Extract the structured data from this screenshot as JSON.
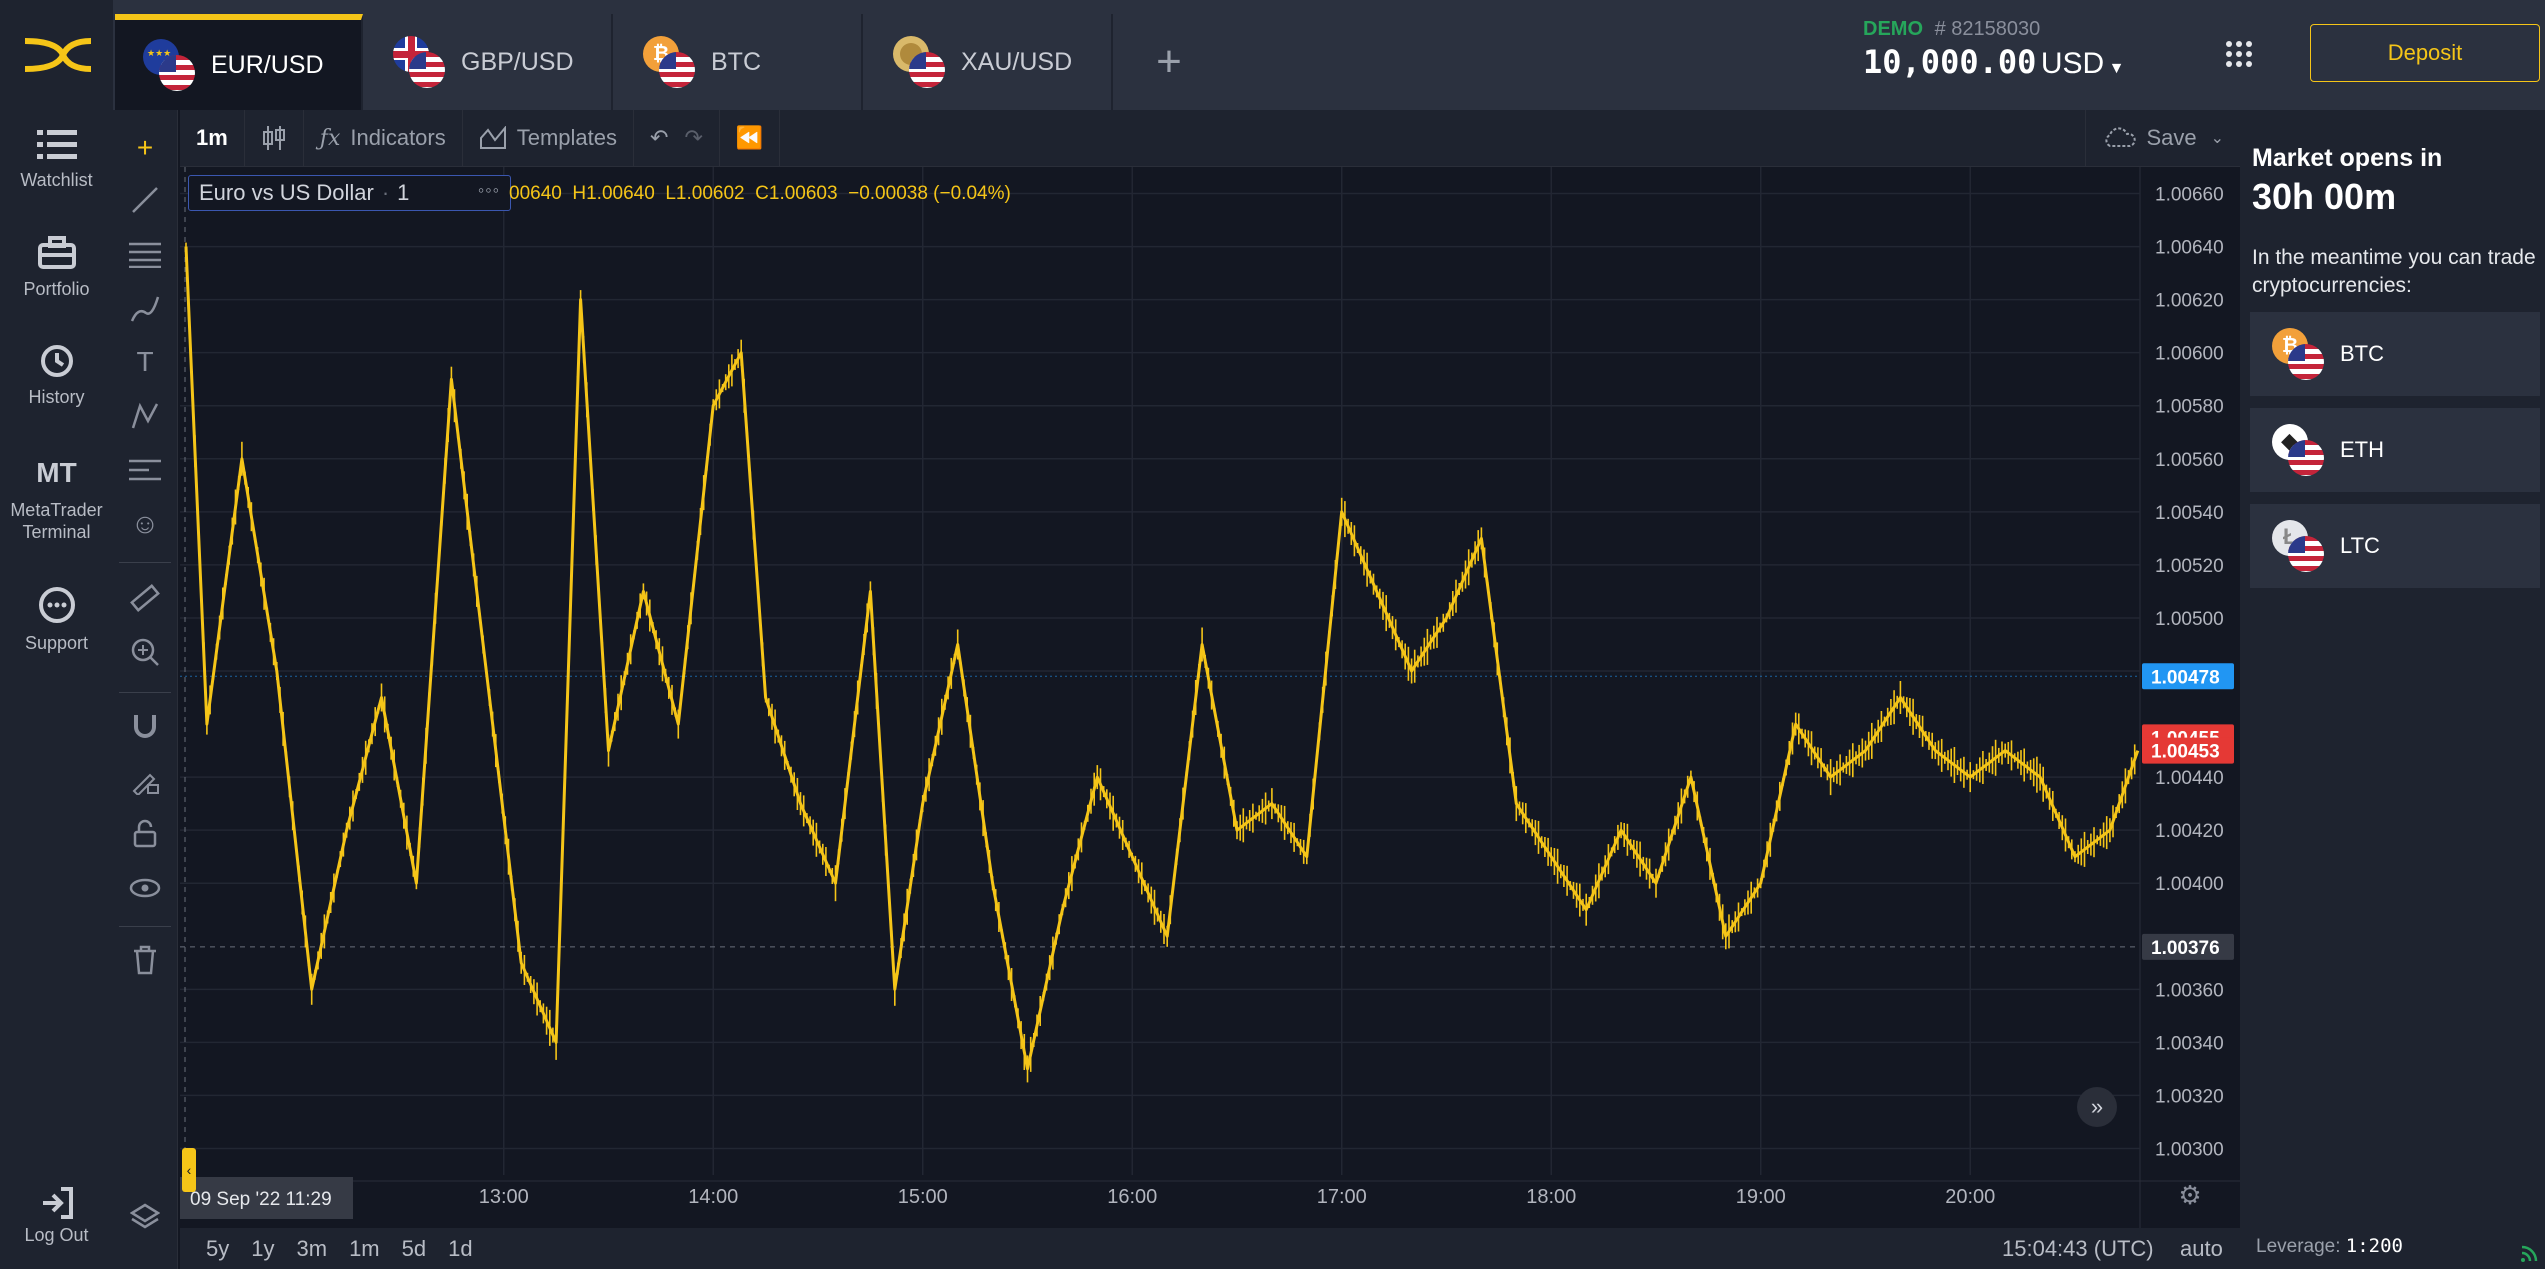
{
  "tabs": [
    {
      "label": "EUR/USD",
      "active": true,
      "flag1": "eu",
      "flag2": "us"
    },
    {
      "label": "GBP/USD",
      "active": false,
      "flag1": "gb",
      "flag2": "us"
    },
    {
      "label": "BTC",
      "active": false,
      "flag1": "btc",
      "flag2": "us"
    },
    {
      "label": "XAU/USD",
      "active": false,
      "flag1": "xau",
      "flag2": "us"
    }
  ],
  "add_tab_icon": "plus-icon",
  "account": {
    "mode": "DEMO",
    "number": "# 82158030",
    "balance": "10,000.00",
    "currency": "USD"
  },
  "header": {
    "deposit_label": "Deposit",
    "apps_icon": "grid-icon"
  },
  "nav": [
    {
      "label": "Watchlist",
      "icon": "list-icon"
    },
    {
      "label": "Portfolio",
      "icon": "briefcase-icon"
    },
    {
      "label": "History",
      "icon": "history-icon"
    },
    {
      "label": "MetaTrader Terminal",
      "icon": "mt-icon",
      "glyph": "MT"
    },
    {
      "label": "Support",
      "icon": "chat-icon"
    }
  ],
  "logout_label": "Log Out",
  "toolbar": {
    "interval": "1m",
    "indicators": "Indicators",
    "templates": "Templates",
    "save": "Save"
  },
  "legend": {
    "symbol": "Euro vs US Dollar",
    "interval": "1",
    "ohlc": "00640  H1.00640  L1.00602  C1.00603  −0.00038 (−0.04%)"
  },
  "market": {
    "title": "Market opens in",
    "countdown": "30h 00m",
    "note": "In the meantime you can trade cryptocurrencies:",
    "cryptos": [
      {
        "label": "BTC",
        "flag1": "btc"
      },
      {
        "label": "ETH",
        "flag1": "eth"
      },
      {
        "label": "LTC",
        "flag1": "ltc"
      }
    ]
  },
  "bottom": {
    "ranges": [
      "5y",
      "1y",
      "3m",
      "1m",
      "5d",
      "1d"
    ],
    "clock": "15:04:43 (UTC)",
    "auto": "auto",
    "leverage_label": "Leverage:",
    "leverage_value": "1:200"
  },
  "colors": {
    "accent": "#f5c518",
    "candle": "#f5c518",
    "bid": "#2196f3",
    "ask": "#e53935",
    "demo": "#26a65b"
  },
  "chart_data": {
    "type": "candlestick",
    "title": "Euro vs US Dollar",
    "interval": "1m",
    "ylim": [
      1.0029,
      1.0067
    ],
    "y_ticks": [
      1.0066,
      1.0064,
      1.0062,
      1.006,
      1.0058,
      1.0056,
      1.0054,
      1.0052,
      1.005,
      1.0048,
      1.0044,
      1.0042,
      1.004,
      1.0036,
      1.0034,
      1.0032,
      1.003
    ],
    "y_tick_labels": [
      "1.00660",
      "1.00640",
      "1.00620",
      "1.00600",
      "1.00580",
      "1.00560",
      "1.00540",
      "1.00520",
      "1.00500",
      "1.00480",
      "1.00440",
      "1.00420",
      "1.00400",
      "1.00360",
      "1.00340",
      "1.00320",
      "1.00300"
    ],
    "x_tick_labels": [
      "13:00",
      "14:00",
      "15:00",
      "16:00",
      "17:00",
      "18:00",
      "19:00",
      "20:00"
    ],
    "x_start_label": "09 Sep '22  11:29",
    "price_labels": {
      "bid": "1.00478",
      "ask_high": "1.00455",
      "ask_low": "1.00453",
      "crosshair": "1.00376"
    },
    "price_points": [
      {
        "t": "11:29",
        "v": 1.0064
      },
      {
        "t": "11:35",
        "v": 1.0046
      },
      {
        "t": "11:45",
        "v": 1.0056
      },
      {
        "t": "11:55",
        "v": 1.0048
      },
      {
        "t": "12:05",
        "v": 1.0036
      },
      {
        "t": "12:15",
        "v": 1.0042
      },
      {
        "t": "12:25",
        "v": 1.0047
      },
      {
        "t": "12:35",
        "v": 1.004
      },
      {
        "t": "12:45",
        "v": 1.0059
      },
      {
        "t": "12:55",
        "v": 1.0048
      },
      {
        "t": "13:05",
        "v": 1.0037
      },
      {
        "t": "13:15",
        "v": 1.0034
      },
      {
        "t": "13:22",
        "v": 1.0062
      },
      {
        "t": "13:30",
        "v": 1.0045
      },
      {
        "t": "13:40",
        "v": 1.0051
      },
      {
        "t": "13:50",
        "v": 1.0046
      },
      {
        "t": "14:00",
        "v": 1.0058
      },
      {
        "t": "14:08",
        "v": 1.006
      },
      {
        "t": "14:15",
        "v": 1.0047
      },
      {
        "t": "14:25",
        "v": 1.0043
      },
      {
        "t": "14:35",
        "v": 1.004
      },
      {
        "t": "14:45",
        "v": 1.0051
      },
      {
        "t": "14:52",
        "v": 1.0036
      },
      {
        "t": "15:00",
        "v": 1.0043
      },
      {
        "t": "15:10",
        "v": 1.0049
      },
      {
        "t": "15:20",
        "v": 1.004
      },
      {
        "t": "15:30",
        "v": 1.0033
      },
      {
        "t": "15:40",
        "v": 1.0039
      },
      {
        "t": "15:50",
        "v": 1.0044
      },
      {
        "t": "16:00",
        "v": 1.0041
      },
      {
        "t": "16:10",
        "v": 1.0038
      },
      {
        "t": "16:20",
        "v": 1.0049
      },
      {
        "t": "16:30",
        "v": 1.0042
      },
      {
        "t": "16:40",
        "v": 1.0043
      },
      {
        "t": "16:50",
        "v": 1.0041
      },
      {
        "t": "17:00",
        "v": 1.0054
      },
      {
        "t": "17:10",
        "v": 1.0051
      },
      {
        "t": "17:20",
        "v": 1.0048
      },
      {
        "t": "17:30",
        "v": 1.005
      },
      {
        "t": "17:40",
        "v": 1.0053
      },
      {
        "t": "17:50",
        "v": 1.0043
      },
      {
        "t": "18:00",
        "v": 1.0041
      },
      {
        "t": "18:10",
        "v": 1.0039
      },
      {
        "t": "18:20",
        "v": 1.0042
      },
      {
        "t": "18:30",
        "v": 1.004
      },
      {
        "t": "18:40",
        "v": 1.0044
      },
      {
        "t": "18:50",
        "v": 1.0038
      },
      {
        "t": "19:00",
        "v": 1.004
      },
      {
        "t": "19:10",
        "v": 1.0046
      },
      {
        "t": "19:20",
        "v": 1.0044
      },
      {
        "t": "19:30",
        "v": 1.0045
      },
      {
        "t": "19:40",
        "v": 1.0047
      },
      {
        "t": "19:50",
        "v": 1.0045
      },
      {
        "t": "20:00",
        "v": 1.0044
      },
      {
        "t": "20:10",
        "v": 1.0045
      },
      {
        "t": "20:20",
        "v": 1.0044
      },
      {
        "t": "20:30",
        "v": 1.0041
      },
      {
        "t": "20:40",
        "v": 1.0042
      },
      {
        "t": "20:48",
        "v": 1.0045
      }
    ]
  }
}
